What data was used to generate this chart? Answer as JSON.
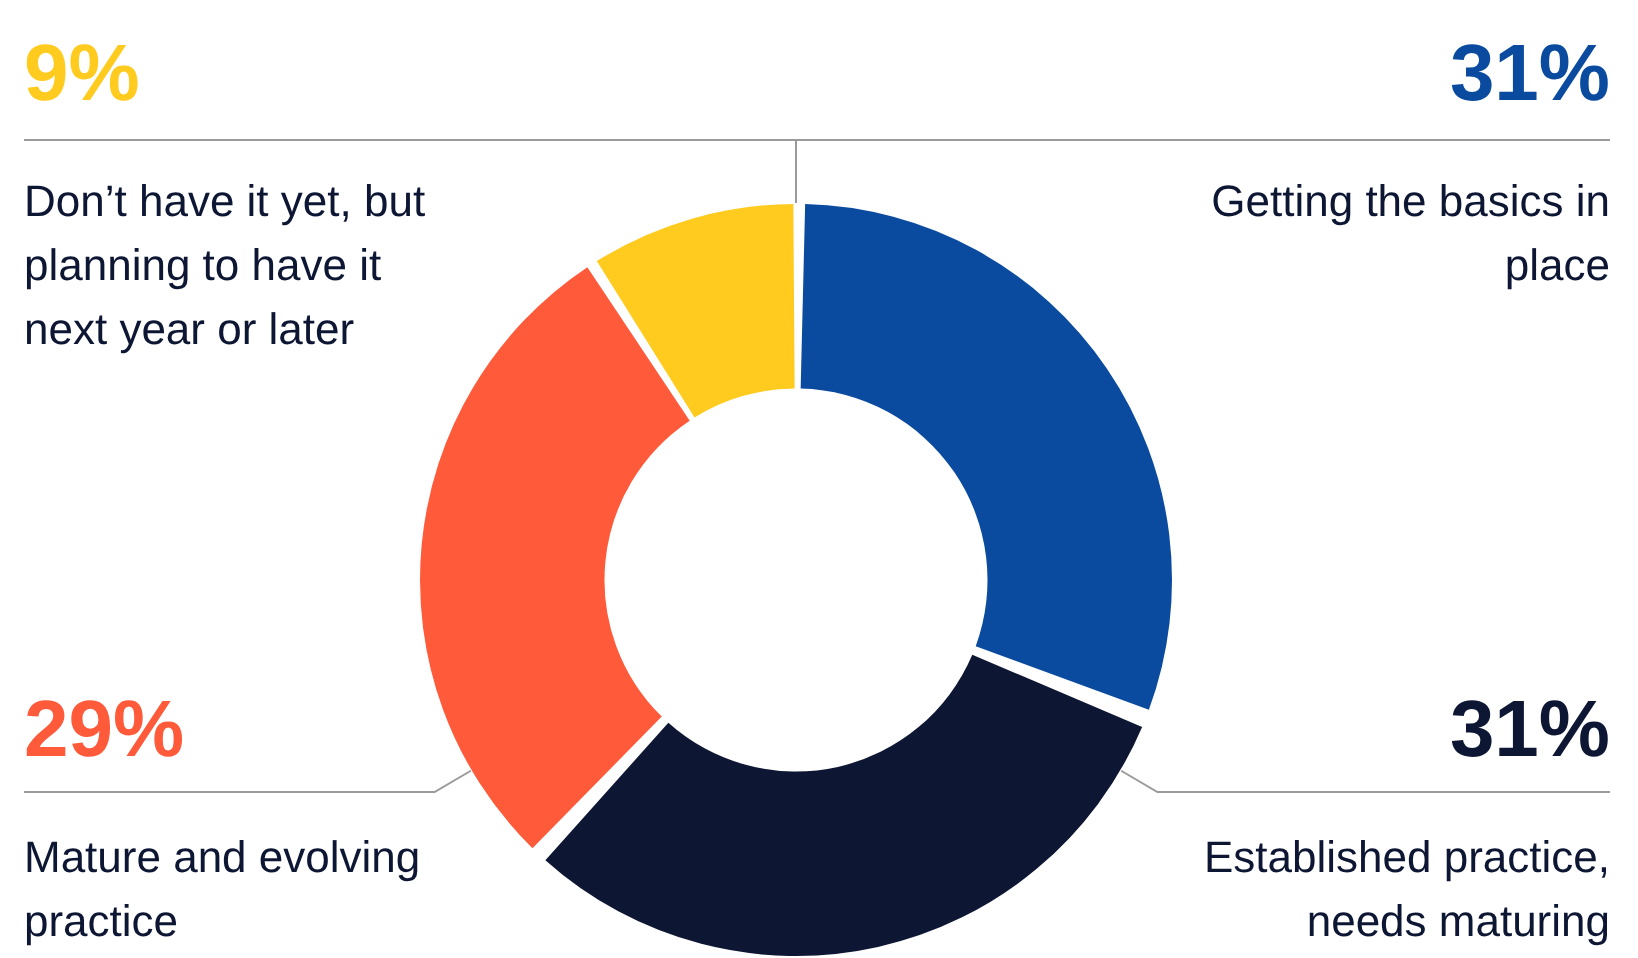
{
  "chart_data": {
    "type": "donut",
    "categories": [
      "Getting the basics in place",
      "Established practice, needs maturing",
      "Mature and evolving practice",
      "Don’t have it yet, but planning to have it next year or later"
    ],
    "values": [
      31,
      31,
      29,
      9
    ],
    "colors": [
      "#0a4ba0",
      "#0d1633",
      "#ff5a3a",
      "#ffcb1f"
    ],
    "value_labels": [
      "31%",
      "31%",
      "29%",
      "9%"
    ],
    "legend": false
  }
}
